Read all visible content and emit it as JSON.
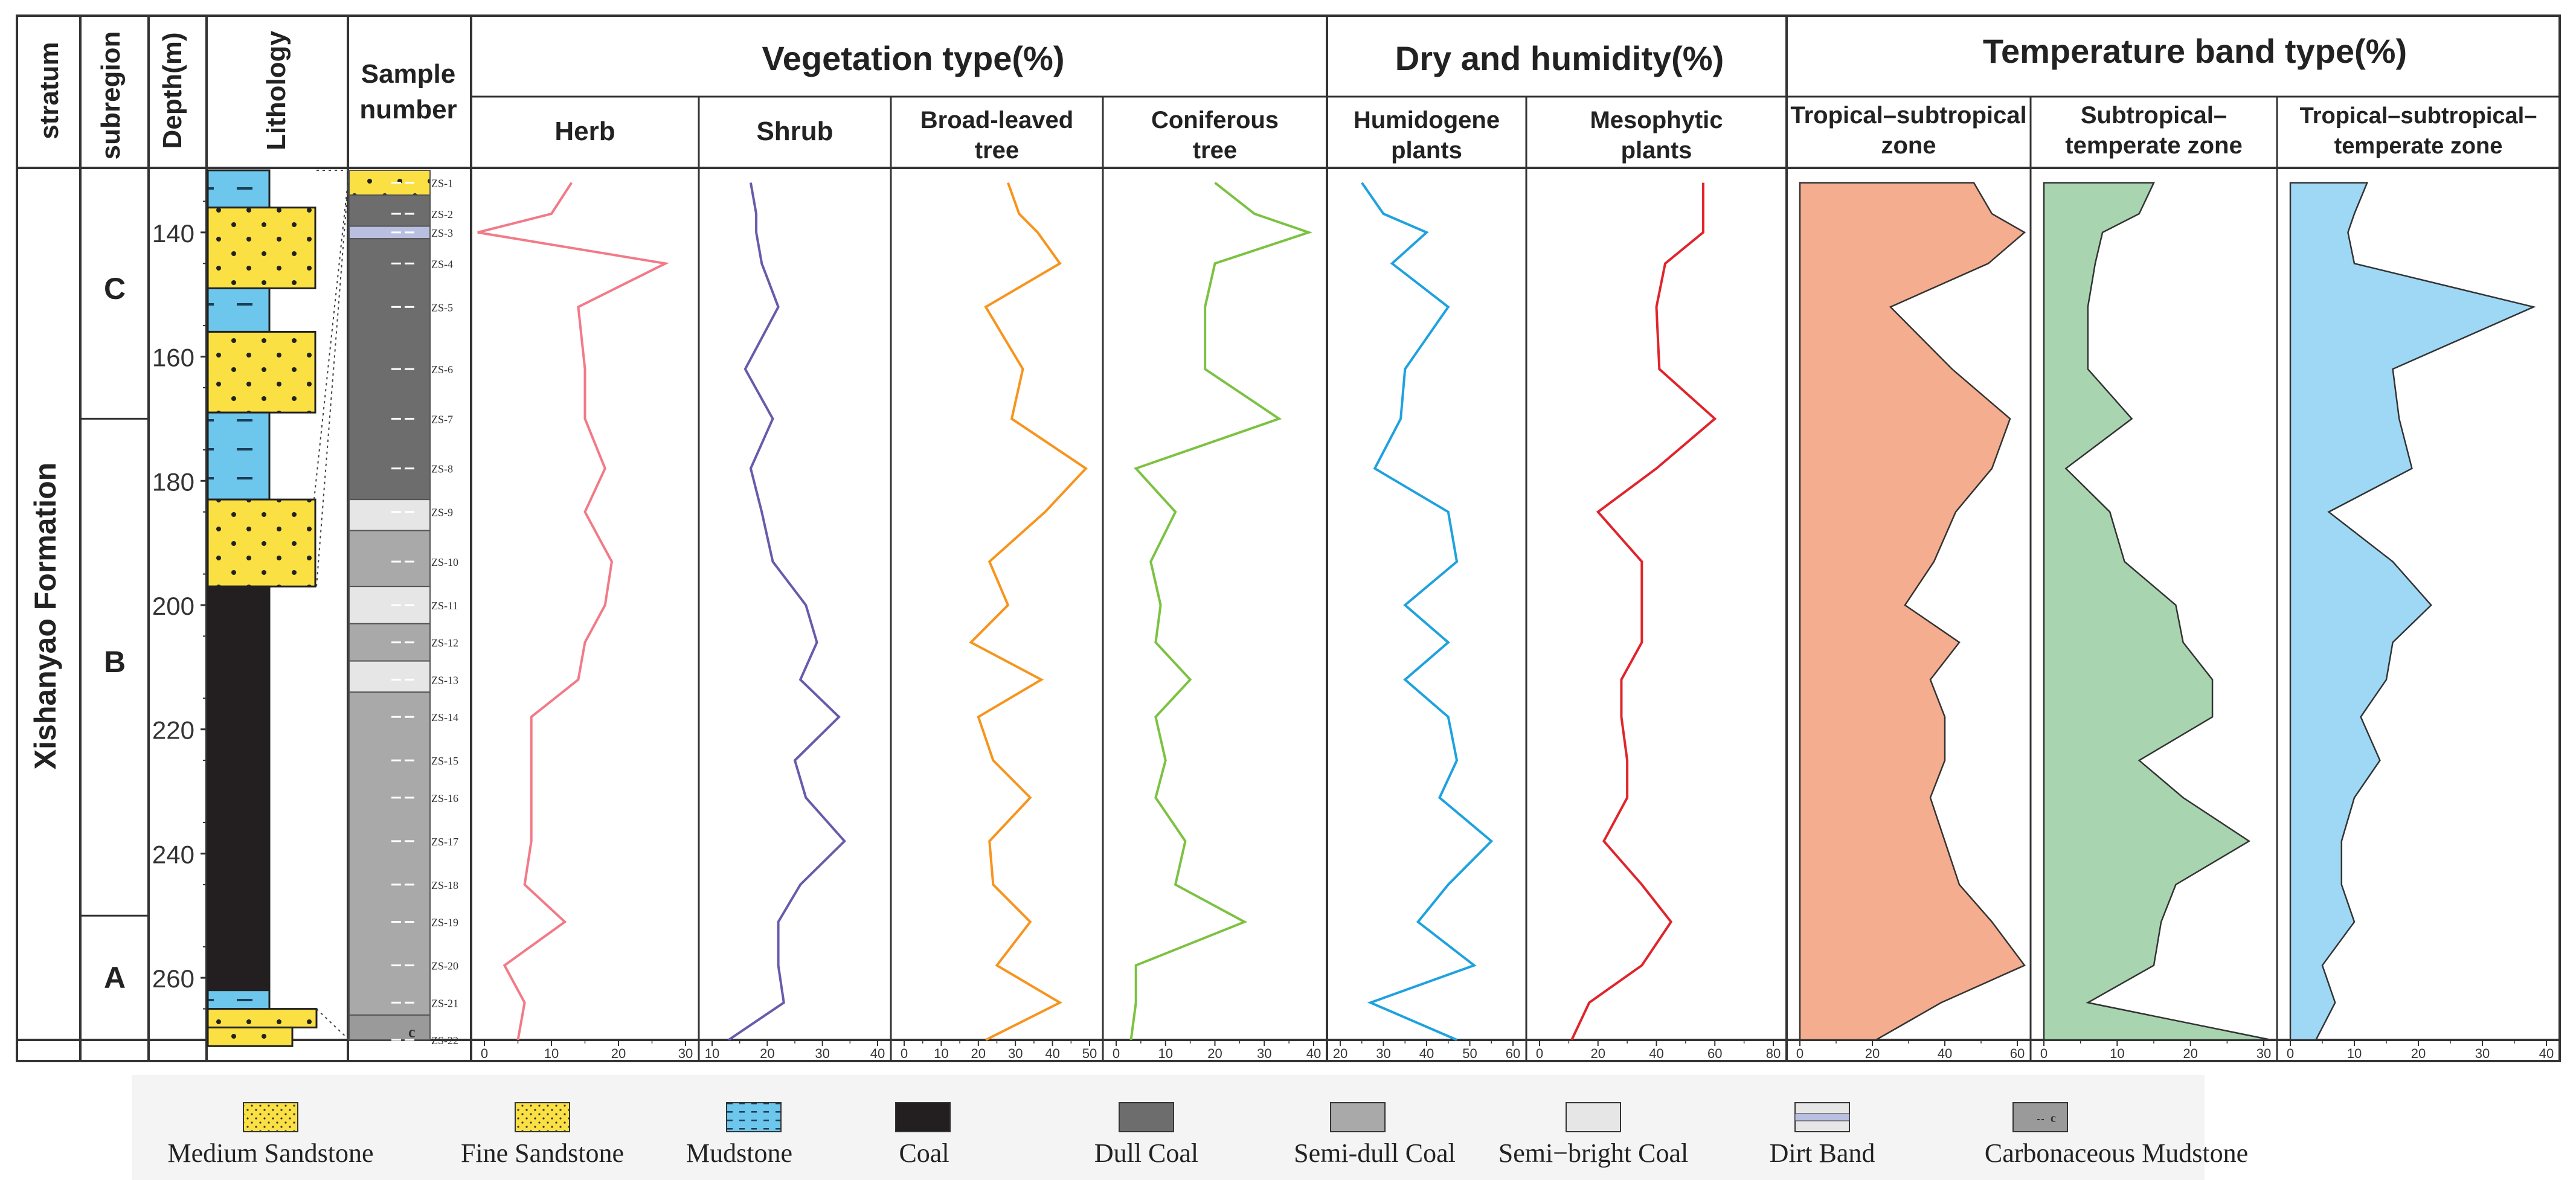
{
  "headers": {
    "stratum": "stratum",
    "subregion": "subregion",
    "depth": "Depth(m)",
    "lithology": "Lithology",
    "sample_line1": "Sample",
    "sample_line2": "number",
    "vegetation": "Vegetation type(%)",
    "dry": "Dry and humidity(%)",
    "temperature": "Temperature band type(%)",
    "formation": "Xishanyao Formation",
    "subregions": [
      "C",
      "B",
      "A"
    ]
  },
  "legend": [
    {
      "label": "Medium Sandstone",
      "pattern": "medium"
    },
    {
      "label": "Fine Sandstone",
      "pattern": "fine"
    },
    {
      "label": "Mudstone",
      "pattern": "mud"
    },
    {
      "label": "Coal",
      "pattern": "coal"
    },
    {
      "label": "Dull Coal",
      "pattern": "dull"
    },
    {
      "label": "Semi-dull Coal",
      "pattern": "semidull"
    },
    {
      "label": "Semi−bright Coal",
      "pattern": "semibright"
    },
    {
      "label": "Dirt Band",
      "pattern": "dirt"
    },
    {
      "label": "Carbonaceous Mudstone",
      "pattern": "carb"
    }
  ],
  "colors": {
    "sandstone": "#fbe043",
    "mudstone": "#6dc6ec",
    "coal": "#231f20",
    "dull_coal": "#6d6d6d",
    "semi_dull_coal": "#a9a9a9",
    "semi_bright_coal": "#e6e6e6",
    "dirt_band": "#b9bfe0",
    "carbonaceous_mudstone": "#9a9a9a"
  },
  "chart_data": {
    "type": "line",
    "y_axis": {
      "label": "Depth(m)",
      "range": [
        130,
        270
      ],
      "ticks": [
        140,
        160,
        180,
        200,
        220,
        240,
        260
      ]
    },
    "subregion_bounds": {
      "C": [
        130,
        170
      ],
      "B": [
        170,
        250
      ],
      "A": [
        250,
        270
      ]
    },
    "lithology": [
      {
        "top": 130,
        "bottom": 136,
        "type": "mudstone"
      },
      {
        "top": 136,
        "bottom": 149,
        "type": "fine_sandstone"
      },
      {
        "top": 149,
        "bottom": 156,
        "type": "mudstone"
      },
      {
        "top": 156,
        "bottom": 169,
        "type": "fine_sandstone"
      },
      {
        "top": 169,
        "bottom": 183,
        "type": "mudstone"
      },
      {
        "top": 183,
        "bottom": 197,
        "type": "fine_sandstone"
      },
      {
        "top": 197,
        "bottom": 262,
        "type": "coal"
      },
      {
        "top": 262,
        "bottom": 265,
        "type": "mudstone"
      },
      {
        "top": 265,
        "bottom": 268,
        "type": "medium_sandstone"
      },
      {
        "top": 268,
        "bottom": 271,
        "type": "fine_sandstone"
      }
    ],
    "sample_column": [
      {
        "top": 130,
        "bottom": 134,
        "type": "sandstone"
      },
      {
        "top": 134,
        "bottom": 139,
        "type": "dull_coal"
      },
      {
        "top": 139,
        "bottom": 141,
        "type": "dirt_band"
      },
      {
        "top": 141,
        "bottom": 183,
        "type": "dull_coal"
      },
      {
        "top": 183,
        "bottom": 188,
        "type": "semi_bright_coal"
      },
      {
        "top": 188,
        "bottom": 197,
        "type": "semi_dull_coal"
      },
      {
        "top": 197,
        "bottom": 203,
        "type": "semi_bright_coal"
      },
      {
        "top": 203,
        "bottom": 209,
        "type": "semi_dull_coal"
      },
      {
        "top": 209,
        "bottom": 214,
        "type": "semi_bright_coal"
      },
      {
        "top": 214,
        "bottom": 266,
        "type": "semi_dull_coal"
      },
      {
        "top": 266,
        "bottom": 270,
        "type": "carbonaceous_mudstone"
      }
    ],
    "carb_label": "c",
    "samples": [
      {
        "id": "ZS-1",
        "depth": 132
      },
      {
        "id": "ZS-2",
        "depth": 137
      },
      {
        "id": "ZS-3",
        "depth": 140
      },
      {
        "id": "ZS-4",
        "depth": 145
      },
      {
        "id": "ZS-5",
        "depth": 152
      },
      {
        "id": "ZS-6",
        "depth": 162
      },
      {
        "id": "ZS-7",
        "depth": 170
      },
      {
        "id": "ZS-8",
        "depth": 178
      },
      {
        "id": "ZS-9",
        "depth": 185
      },
      {
        "id": "ZS-10",
        "depth": 193
      },
      {
        "id": "ZS-11",
        "depth": 200
      },
      {
        "id": "ZS-12",
        "depth": 206
      },
      {
        "id": "ZS-13",
        "depth": 212
      },
      {
        "id": "ZS-14",
        "depth": 218
      },
      {
        "id": "ZS-15",
        "depth": 225
      },
      {
        "id": "ZS-16",
        "depth": 231
      },
      {
        "id": "ZS-17",
        "depth": 238
      },
      {
        "id": "ZS-18",
        "depth": 245
      },
      {
        "id": "ZS-19",
        "depth": 251
      },
      {
        "id": "ZS-20",
        "depth": 258
      },
      {
        "id": "ZS-21",
        "depth": 264
      },
      {
        "id": "ZS-22",
        "depth": 270
      }
    ],
    "series": [
      {
        "name": "Herb",
        "group": "vegetation",
        "style": "line",
        "color": "#f27a87",
        "range": [
          0,
          30
        ],
        "ticks": [
          0,
          10,
          20,
          30
        ],
        "values": [
          13,
          10,
          -1,
          27,
          14,
          15,
          15,
          18,
          15,
          19,
          18,
          15,
          14,
          7,
          7,
          7,
          7,
          6,
          12,
          3,
          6,
          5
        ]
      },
      {
        "name": "Shrub",
        "group": "vegetation",
        "style": "line",
        "color": "#6a5aab",
        "range": [
          10,
          40
        ],
        "ticks": [
          10,
          20,
          30,
          40
        ],
        "values": [
          17,
          18,
          18,
          19,
          22,
          16,
          21,
          17,
          19,
          21,
          27,
          29,
          26,
          33,
          25,
          27,
          34,
          26,
          22,
          22,
          23,
          13
        ]
      },
      {
        "name": "Broad-leaved tree",
        "name_lines": [
          "Broad-leaved",
          "tree"
        ],
        "group": "vegetation",
        "style": "line",
        "color": "#f7941d",
        "range": [
          0,
          50
        ],
        "ticks": [
          0,
          10,
          20,
          30,
          40,
          50
        ],
        "values": [
          28,
          31,
          36,
          42,
          22,
          32,
          29,
          49,
          38,
          23,
          28,
          18,
          37,
          20,
          24,
          34,
          23,
          24,
          34,
          25,
          42,
          22
        ]
      },
      {
        "name": "Coniferous tree",
        "name_lines": [
          "Coniferous",
          "tree"
        ],
        "group": "vegetation",
        "style": "line",
        "color": "#7cc242",
        "range": [
          0,
          40
        ],
        "ticks": [
          0,
          10,
          20,
          30,
          40
        ],
        "values": [
          20,
          28,
          39,
          20,
          18,
          18,
          33,
          4,
          12,
          7,
          9,
          8,
          15,
          8,
          10,
          8,
          14,
          12,
          26,
          4,
          4,
          3
        ]
      },
      {
        "name": "Humidogene plants",
        "name_lines": [
          "Humidogene",
          "plants"
        ],
        "group": "dry",
        "style": "line",
        "color": "#1ea2df",
        "range": [
          20,
          60
        ],
        "ticks": [
          20,
          30,
          40,
          50,
          60
        ],
        "values": [
          25,
          30,
          40,
          32,
          45,
          35,
          34,
          28,
          45,
          47,
          35,
          45,
          35,
          45,
          47,
          43,
          55,
          45,
          38,
          51,
          27,
          47
        ]
      },
      {
        "name": "Mesophytic plants",
        "name_lines": [
          "Mesophytic",
          "plants"
        ],
        "group": "dry",
        "style": "line",
        "color": "#e0242b",
        "range": [
          0,
          80
        ],
        "ticks": [
          0,
          20,
          40,
          60,
          80
        ],
        "values": [
          56,
          56,
          56,
          43,
          40,
          41,
          60,
          40,
          20,
          35,
          35,
          35,
          28,
          28,
          30,
          30,
          22,
          35,
          45,
          35,
          17,
          11
        ]
      },
      {
        "name": "Tropical–subtropical zone",
        "name_lines": [
          "Tropical–subtropical",
          "zone"
        ],
        "group": "temperature",
        "style": "area",
        "color": "#f4ad8f",
        "range": [
          0,
          60
        ],
        "ticks": [
          0,
          20,
          40,
          60
        ],
        "values": [
          48,
          53,
          62,
          52,
          25,
          42,
          58,
          53,
          43,
          37,
          29,
          44,
          36,
          40,
          40,
          36,
          40,
          44,
          53,
          62,
          39,
          21
        ]
      },
      {
        "name": "Subtropical–temperate zone",
        "name_lines": [
          "Subtropical–",
          "temperate zone"
        ],
        "group": "temperature",
        "style": "area",
        "color": "#a8d5b0",
        "range": [
          0,
          30
        ],
        "ticks": [
          0,
          10,
          20,
          30
        ],
        "values": [
          15,
          13,
          8,
          7,
          6,
          6,
          12,
          3,
          9,
          11,
          18,
          19,
          23,
          23,
          13,
          19,
          28,
          18,
          16,
          15,
          6,
          31
        ]
      },
      {
        "name": "Tropical–subtropical–temperate zone",
        "name_lines": [
          "Tropical–subtropical–",
          "temperate zone"
        ],
        "group": "temperature",
        "style": "area",
        "color": "#9ed8f5",
        "range": [
          0,
          40
        ],
        "ticks": [
          0,
          10,
          20,
          30,
          40
        ],
        "values": [
          12,
          10,
          9,
          10,
          38,
          16,
          17,
          19,
          6,
          16,
          22,
          16,
          15,
          11,
          14,
          10,
          8,
          8,
          10,
          5,
          7,
          4
        ]
      }
    ]
  }
}
